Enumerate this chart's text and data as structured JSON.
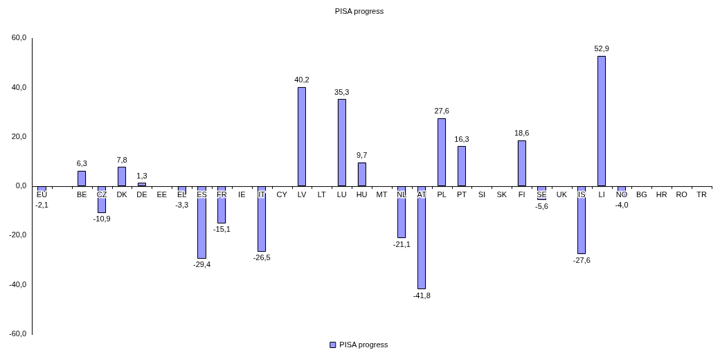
{
  "chart_data": {
    "type": "bar",
    "title": "PISA progress",
    "categories": [
      "EU",
      null,
      "BE",
      "CZ",
      "DK",
      "DE",
      "EE",
      "EL",
      "ES",
      "FR",
      "IE",
      "IT",
      "CY",
      "LV",
      "LT",
      "LU",
      "HU",
      "MT",
      "NL",
      "AT",
      "PL",
      "PT",
      "SI",
      "SK",
      "FI",
      "SE",
      "UK",
      "IS",
      "LI",
      "NO",
      "BG",
      "HR",
      "RO",
      "TR"
    ],
    "series": [
      {
        "name": "PISA progress",
        "color": "#9999ff",
        "values": [
          -2.1,
          null,
          6.3,
          -10.9,
          7.8,
          1.3,
          null,
          -3.3,
          -29.4,
          -15.1,
          null,
          -26.5,
          null,
          40.2,
          null,
          35.3,
          9.7,
          null,
          -21.1,
          -41.8,
          27.6,
          16.3,
          null,
          null,
          18.6,
          -5.6,
          null,
          -27.6,
          52.9,
          -4.0,
          null,
          null,
          null,
          null
        ],
        "value_labels": [
          "-2,1",
          null,
          "6,3",
          "-10,9",
          "7,8",
          "1,3",
          null,
          "-3,3",
          "-29,4",
          "-15,1",
          null,
          "-26,5",
          null,
          "40,2",
          null,
          "35,3",
          "9,7",
          null,
          "-21,1",
          "-41,8",
          "27,6",
          "16,3",
          null,
          null,
          "18,6",
          "-5,6",
          null,
          "-27,6",
          "52,9",
          "-4,0",
          null,
          null,
          null,
          null
        ]
      }
    ],
    "ylim": [
      -60,
      60
    ],
    "yticks": [
      {
        "value": -60,
        "label": "-60,0"
      },
      {
        "value": -40,
        "label": "-40,0"
      },
      {
        "value": -20,
        "label": "-20,0"
      },
      {
        "value": 0,
        "label": "0,0"
      },
      {
        "value": 20,
        "label": "20,0"
      },
      {
        "value": 40,
        "label": "40,0"
      },
      {
        "value": 60,
        "label": "60,0"
      }
    ],
    "grid": false,
    "legend": "bottom"
  }
}
